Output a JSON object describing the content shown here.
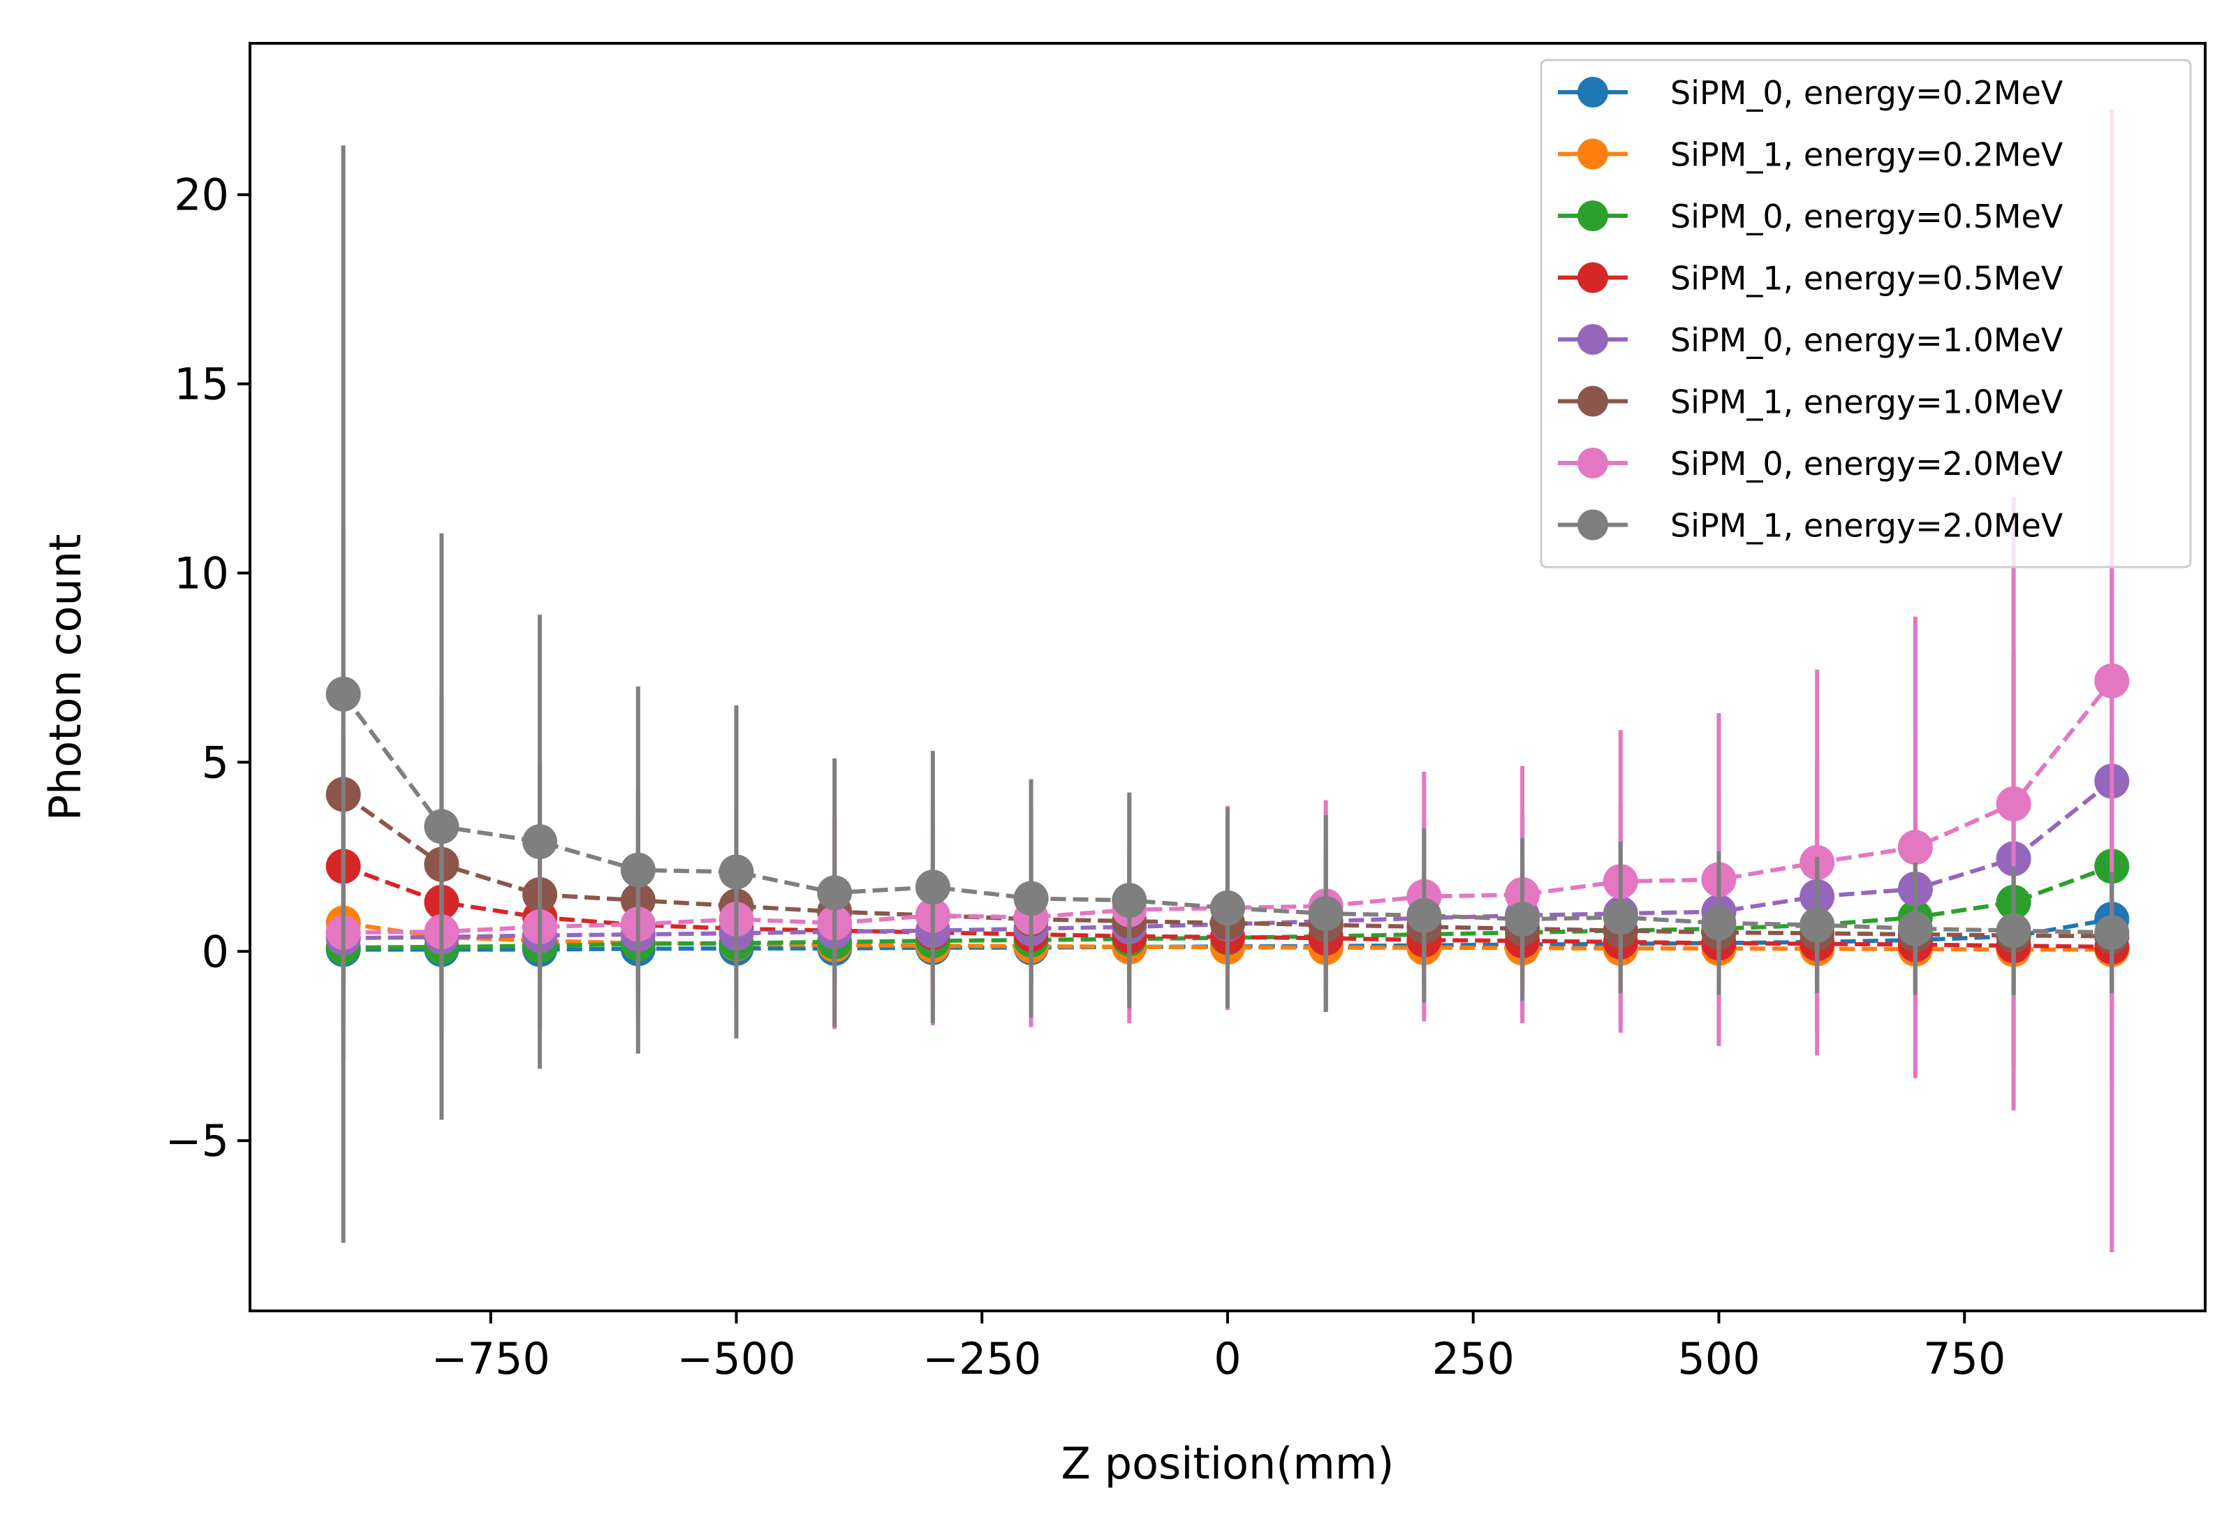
{
  "chart_data": {
    "type": "line",
    "title": "",
    "xlabel": "Z position(mm)",
    "ylabel": "Photon count",
    "xlim": [
      -995,
      995
    ],
    "ylim": [
      -9.5,
      24.0
    ],
    "xticks": [
      -750,
      -500,
      -250,
      0,
      250,
      500,
      750
    ],
    "xtick_labels": [
      "−750",
      "−500",
      "−250",
      "0",
      "250",
      "500",
      "750"
    ],
    "yticks": [
      -5,
      0,
      5,
      10,
      15,
      20
    ],
    "ytick_labels": [
      "−5",
      "0",
      "5",
      "10",
      "15",
      "20"
    ],
    "grid": false,
    "legend_position": "top-right",
    "x": [
      -900,
      -800,
      -700,
      -600,
      -500,
      -400,
      -300,
      -200,
      -100,
      0,
      100,
      200,
      300,
      400,
      500,
      600,
      700,
      800,
      900
    ],
    "series": [
      {
        "name": "SiPM_0, energy=0.2MeV",
        "color": "#1f77b4",
        "values": [
          0.05,
          0.05,
          0.05,
          0.07,
          0.08,
          0.08,
          0.1,
          0.1,
          0.12,
          0.13,
          0.14,
          0.16,
          0.18,
          0.2,
          0.22,
          0.25,
          0.3,
          0.4,
          0.85
        ],
        "errors": [
          0.7,
          0.7,
          0.7,
          0.7,
          0.7,
          0.7,
          0.7,
          0.7,
          0.7,
          0.7,
          0.7,
          0.7,
          0.7,
          0.7,
          0.7,
          0.7,
          0.7,
          0.8,
          1.5
        ]
      },
      {
        "name": "SiPM_1, energy=0.2MeV",
        "color": "#ff7f0e",
        "values": [
          0.75,
          0.38,
          0.28,
          0.22,
          0.2,
          0.17,
          0.15,
          0.14,
          0.12,
          0.11,
          0.1,
          0.1,
          0.09,
          0.08,
          0.08,
          0.07,
          0.06,
          0.05,
          0.05
        ],
        "errors": [
          1.3,
          0.9,
          0.8,
          0.7,
          0.7,
          0.7,
          0.7,
          0.7,
          0.7,
          0.7,
          0.7,
          0.7,
          0.7,
          0.7,
          0.7,
          0.7,
          0.7,
          0.7,
          0.7
        ]
      },
      {
        "name": "SiPM_0, energy=0.5MeV",
        "color": "#2ca02c",
        "values": [
          0.1,
          0.12,
          0.15,
          0.2,
          0.22,
          0.25,
          0.28,
          0.3,
          0.33,
          0.36,
          0.4,
          0.45,
          0.5,
          0.55,
          0.6,
          0.7,
          0.9,
          1.3,
          2.25
        ],
        "errors": [
          1.0,
          1.0,
          1.0,
          1.0,
          1.1,
          1.1,
          1.1,
          1.2,
          1.2,
          1.2,
          1.3,
          1.3,
          1.4,
          1.5,
          1.6,
          1.8,
          2.0,
          2.5,
          3.5
        ]
      },
      {
        "name": "SiPM_1, energy=0.5MeV",
        "color": "#d62728",
        "values": [
          2.25,
          1.3,
          0.9,
          0.7,
          0.6,
          0.55,
          0.5,
          0.45,
          0.4,
          0.38,
          0.35,
          0.3,
          0.28,
          0.25,
          0.22,
          0.2,
          0.18,
          0.15,
          0.12
        ],
        "errors": [
          3.5,
          2.5,
          2.0,
          1.8,
          1.6,
          1.5,
          1.4,
          1.3,
          1.3,
          1.2,
          1.2,
          1.1,
          1.1,
          1.1,
          1.0,
          1.0,
          1.0,
          1.0,
          1.0
        ]
      },
      {
        "name": "SiPM_0, energy=1.0MeV",
        "color": "#9467bd",
        "values": [
          0.35,
          0.38,
          0.42,
          0.45,
          0.48,
          0.52,
          0.55,
          0.6,
          0.65,
          0.72,
          0.8,
          0.88,
          0.95,
          1.0,
          1.05,
          1.45,
          1.65,
          2.45,
          4.5
        ],
        "errors": [
          1.5,
          1.5,
          1.6,
          1.6,
          1.7,
          1.7,
          1.8,
          1.9,
          2.0,
          2.1,
          2.3,
          2.5,
          2.7,
          2.9,
          3.1,
          3.6,
          4.2,
          5.5,
          8.0
        ]
      },
      {
        "name": "SiPM_1, energy=1.0MeV",
        "color": "#8c564b",
        "values": [
          4.15,
          2.3,
          1.5,
          1.35,
          1.2,
          1.05,
          0.95,
          0.85,
          0.8,
          0.75,
          0.7,
          0.65,
          0.6,
          0.55,
          0.5,
          0.48,
          0.45,
          0.42,
          0.4
        ],
        "errors": [
          7.0,
          4.5,
          3.5,
          3.0,
          2.7,
          2.5,
          2.3,
          2.2,
          2.1,
          2.0,
          1.9,
          1.8,
          1.8,
          1.7,
          1.7,
          1.6,
          1.6,
          1.6,
          1.5
        ]
      },
      {
        "name": "SiPM_0, energy=2.0MeV",
        "color": "#e377c2",
        "values": [
          0.5,
          0.52,
          0.65,
          0.72,
          0.85,
          0.75,
          0.95,
          0.9,
          1.1,
          1.15,
          1.2,
          1.45,
          1.5,
          1.85,
          1.9,
          2.35,
          2.75,
          3.9,
          7.15
        ],
        "errors": [
          2.5,
          2.5,
          2.6,
          2.7,
          2.8,
          2.8,
          2.9,
          2.9,
          3.0,
          2.7,
          2.8,
          3.3,
          3.4,
          4.0,
          4.4,
          5.1,
          6.1,
          8.1,
          15.1
        ]
      },
      {
        "name": "SiPM_1, energy=2.0MeV",
        "color": "#7f7f7f",
        "values": [
          6.8,
          3.3,
          2.9,
          2.15,
          2.1,
          1.55,
          1.7,
          1.4,
          1.35,
          1.15,
          1.0,
          0.95,
          0.85,
          0.9,
          0.75,
          0.7,
          0.6,
          0.55,
          0.5
        ],
        "errors": [
          14.5,
          7.75,
          6.0,
          4.85,
          4.4,
          3.55,
          3.6,
          3.15,
          2.85,
          2.65,
          2.6,
          2.3,
          2.15,
          2.0,
          1.9,
          1.8,
          1.75,
          1.7,
          1.6
        ]
      }
    ]
  }
}
